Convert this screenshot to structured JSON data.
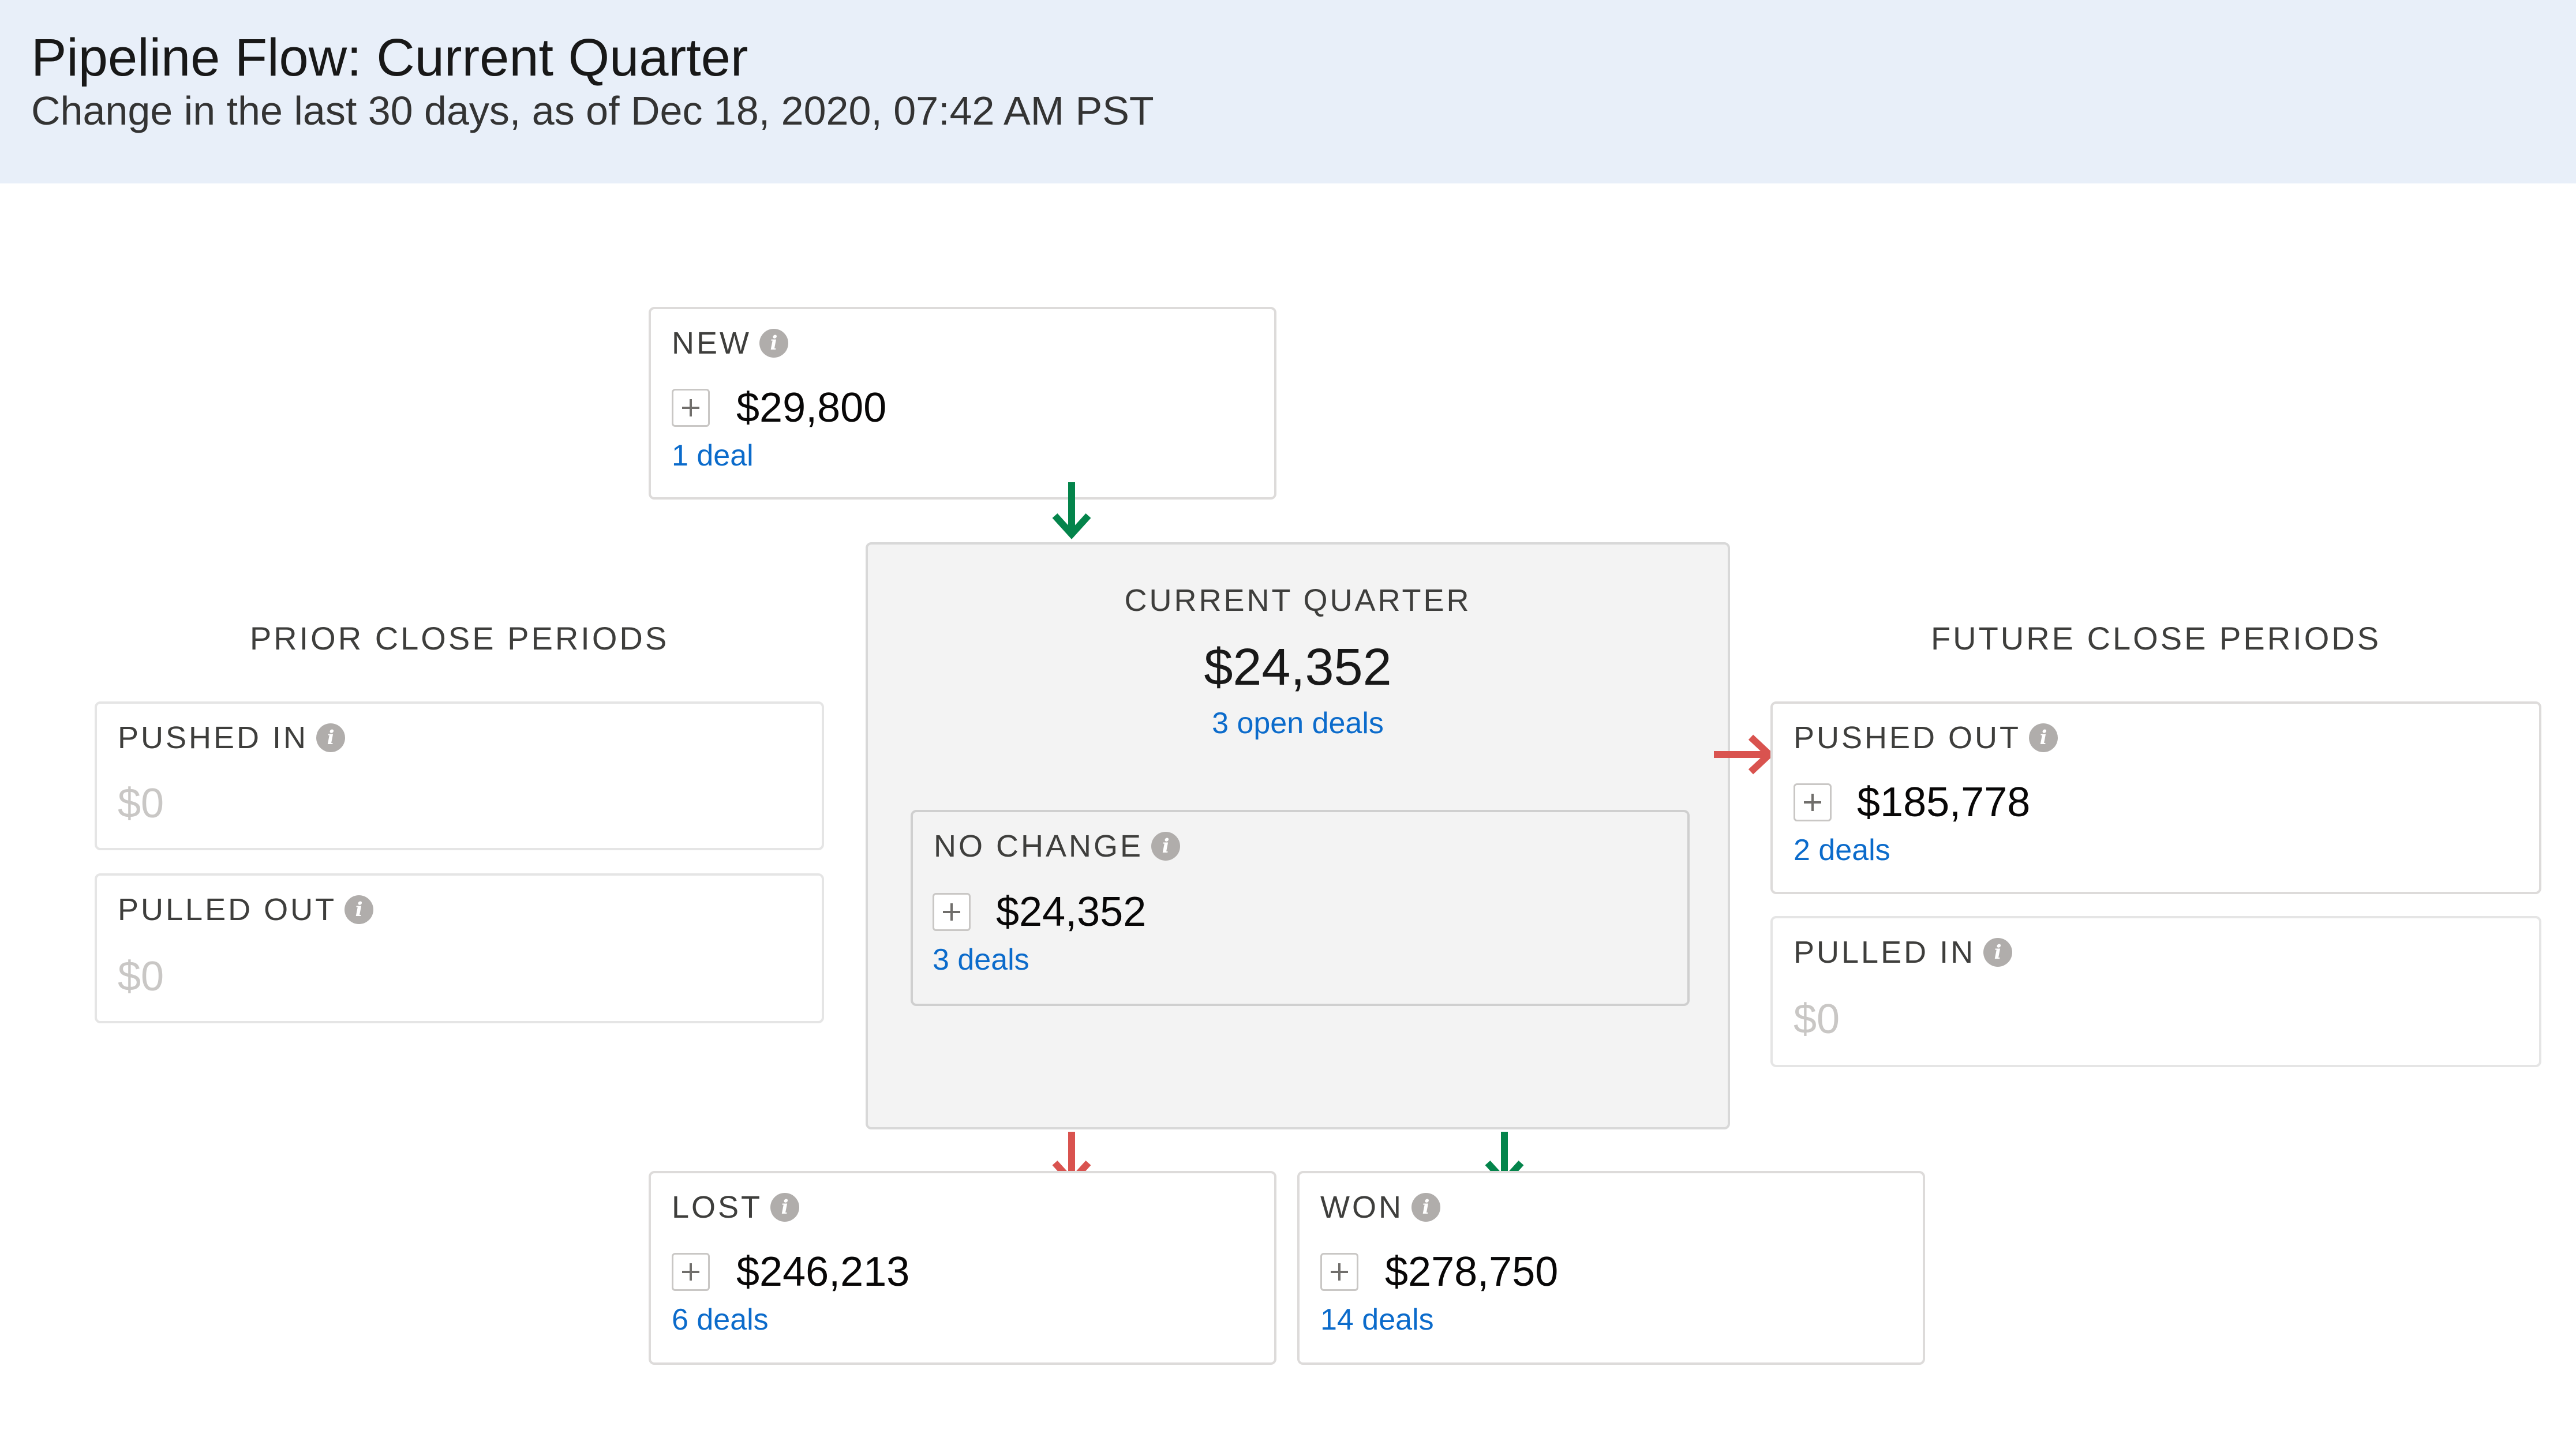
{
  "header": {
    "title": "Pipeline Flow: Current Quarter",
    "subtitle": "Change in the last 30 days, as of Dec 18, 2020, 07:42 AM PST"
  },
  "colors": {
    "header_bg": "#e8eff9",
    "link": "#0b6bcb",
    "arrow_positive": "#04844b",
    "arrow_negative": "#d9534f"
  },
  "sections": {
    "prior": "PRIOR CLOSE PERIODS",
    "future": "FUTURE CLOSE PERIODS"
  },
  "new": {
    "label": "NEW",
    "amount": "$29,800",
    "deals": "1 deal"
  },
  "current_quarter": {
    "label": "CURRENT QUARTER",
    "amount": "$24,352",
    "deals": "3 open deals",
    "no_change": {
      "label": "NO CHANGE",
      "amount": "$24,352",
      "deals": "3 deals"
    }
  },
  "prior": {
    "pushed_in": {
      "label": "PUSHED IN",
      "amount": "$0"
    },
    "pulled_out": {
      "label": "PULLED OUT",
      "amount": "$0"
    }
  },
  "future": {
    "pushed_out": {
      "label": "PUSHED OUT",
      "amount": "$185,778",
      "deals": "2 deals"
    },
    "pulled_in": {
      "label": "PULLED IN",
      "amount": "$0"
    }
  },
  "lost": {
    "label": "LOST",
    "amount": "$246,213",
    "deals": "6 deals"
  },
  "won": {
    "label": "WON",
    "amount": "$278,750",
    "deals": "14 deals"
  },
  "icons": {
    "info": "info-icon",
    "expand": "plus-icon",
    "arrow_down": "arrow-down-icon",
    "arrow_right": "arrow-right-icon"
  }
}
